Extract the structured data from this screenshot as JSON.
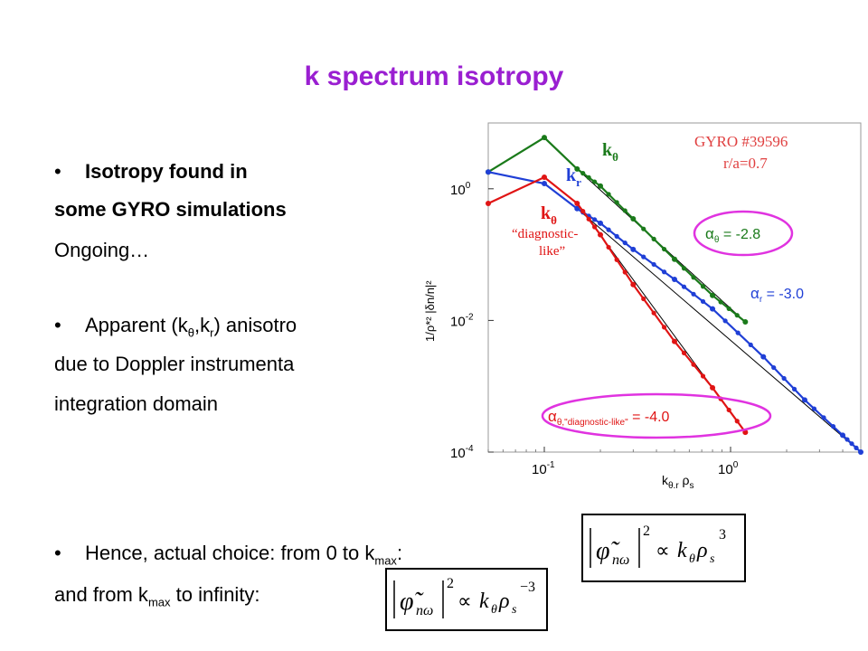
{
  "title": "k spectrum isotropy",
  "bullets": {
    "b1_line1": "Isotropy found in",
    "b1_line2": "some GYRO simulations",
    "b1_line3": "Ongoing…",
    "b2_line1_pre": "Apparent (k",
    "b2_sub1": "θ",
    "b2_mid": ",k",
    "b2_sub2": "r",
    "b2_line1_post": ") anisotro",
    "b2_line2": "due to Doppler instrumenta",
    "b2_line3": "integration domain",
    "b3_line1_pre": "Hence, actual choice: from 0 to k",
    "b3_sub": "max",
    "b3_line1_post": ":",
    "b3_line2_pre": "and from k",
    "b3_line2_sub": "max",
    "b3_line2_post": " to infinity:",
    "bullet_char": "•"
  },
  "formulas": {
    "f1": {
      "lhs": "φ̃",
      "sub": "nω",
      "sq": "2",
      "prop": "∝",
      "rhs_k": "k",
      "rhs_ksub": "θ",
      "rhs_rho": "ρ",
      "rhs_rhosub": "s",
      "exp": "3"
    },
    "f2": {
      "lhs": "φ̃",
      "sub": "nω",
      "sq": "2",
      "prop": "∝",
      "rhs_k": "k",
      "rhs_ksub": "θ",
      "rhs_rho": "ρ",
      "rhs_rhosub": "s",
      "exp": "−3"
    }
  },
  "chart_data": {
    "type": "line",
    "xscale": "log",
    "yscale": "log",
    "xlim": [
      0.05,
      5
    ],
    "ylim": [
      0.0001,
      10
    ],
    "xticks": [
      {
        "v": 0.1,
        "b": "10",
        "e": "-1"
      },
      {
        "v": 1,
        "b": "10",
        "e": "0"
      }
    ],
    "yticks": [
      {
        "v": 0.0001,
        "b": "10",
        "e": "-4"
      },
      {
        "v": 0.01,
        "b": "10",
        "e": "-2"
      },
      {
        "v": 1,
        "b": "10",
        "e": "0"
      }
    ],
    "xlabel": {
      "main": "k",
      "sub": "θ,r",
      "tail": " ρ",
      "tail_sub": "s"
    },
    "ylabel": "1/ρ*² |δn/n|²",
    "gyro_label": "GYRO #39596",
    "ra_label": "r/a=0.7",
    "series": [
      {
        "name": "kθ",
        "color": "#1a7a1a",
        "label_main": "k",
        "label_sub": "θ",
        "x": [
          0.05,
          0.1,
          0.15,
          0.2,
          0.3,
          0.5,
          0.8,
          1.2
        ],
        "y": [
          1.8,
          6.0,
          2.0,
          1.1,
          0.35,
          0.085,
          0.024,
          0.0095
        ]
      },
      {
        "name": "kr",
        "color": "#1f3fd6",
        "label_main": "k",
        "label_sub": "r",
        "x": [
          0.05,
          0.1,
          0.15,
          0.2,
          0.3,
          0.5,
          0.8,
          1.5,
          2.5,
          4.0,
          5.0
        ],
        "y": [
          1.8,
          1.2,
          0.5,
          0.3,
          0.12,
          0.042,
          0.015,
          0.0028,
          0.00062,
          0.00018,
          0.0001
        ]
      },
      {
        "name": "kθ diagnostic-like",
        "color": "#e01414",
        "label_main": "k",
        "label_sub": "θ",
        "x": [
          0.05,
          0.1,
          0.15,
          0.2,
          0.3,
          0.5,
          0.8,
          1.2
        ],
        "y": [
          0.6,
          1.5,
          0.6,
          0.2,
          0.035,
          0.0048,
          0.00095,
          0.0002
        ]
      }
    ],
    "diag_label_1": "“diagnostic-",
    "diag_label_2": "like”",
    "annotations": [
      {
        "alpha_sub": "θ",
        "value": " = -2.8",
        "color": "#1a7a1a",
        "ellipse": "#e033e0"
      },
      {
        "alpha_sub": "r",
        "value": " = -3.0",
        "color": "#1f3fd6",
        "ellipse": ""
      },
      {
        "alpha_sub": "θ,\"diagnostic-like\"",
        "value": " = -4.0",
        "color": "#e01414",
        "ellipse": "#e033e0"
      }
    ],
    "alpha_symbol": "α",
    "colors": {
      "frame": "#999999",
      "fit_line": "#000000",
      "gyro_text": "#e04040"
    }
  }
}
